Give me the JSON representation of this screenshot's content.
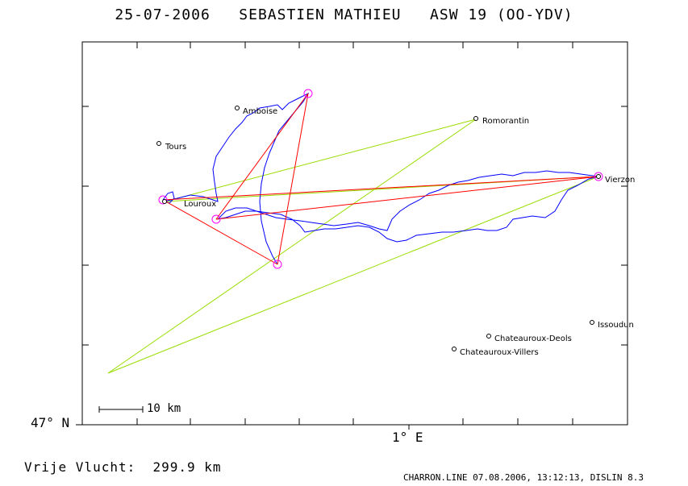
{
  "header": {
    "title": "25-07-2006   SEBASTIEN MATHIEU   ASW 19 (OO-YDV)"
  },
  "axes": {
    "lat_label": "47° N",
    "lon_label": "1° E"
  },
  "scale_bar": {
    "label": "10 km"
  },
  "footer": {
    "distance_text": "Vrije Vlucht:  299.9 km",
    "info": "CHARRON.LINE 07.08.2006, 13:12:13, DISLIN 8.3"
  },
  "places": [
    {
      "name": "Amboise"
    },
    {
      "name": "Romorantin"
    },
    {
      "name": "Tours"
    },
    {
      "name": "Vierzon"
    },
    {
      "name": "Louroux"
    },
    {
      "name": "Issoudun"
    },
    {
      "name": "Chateauroux-Deols"
    },
    {
      "name": "Chateauroux-Villers"
    }
  ],
  "colors": {
    "track": "#0000ff",
    "declared_task": "#99dd00",
    "optimized_route": "#ff0000",
    "turnpoint": "#ff00ff",
    "frame": "#000000"
  }
}
